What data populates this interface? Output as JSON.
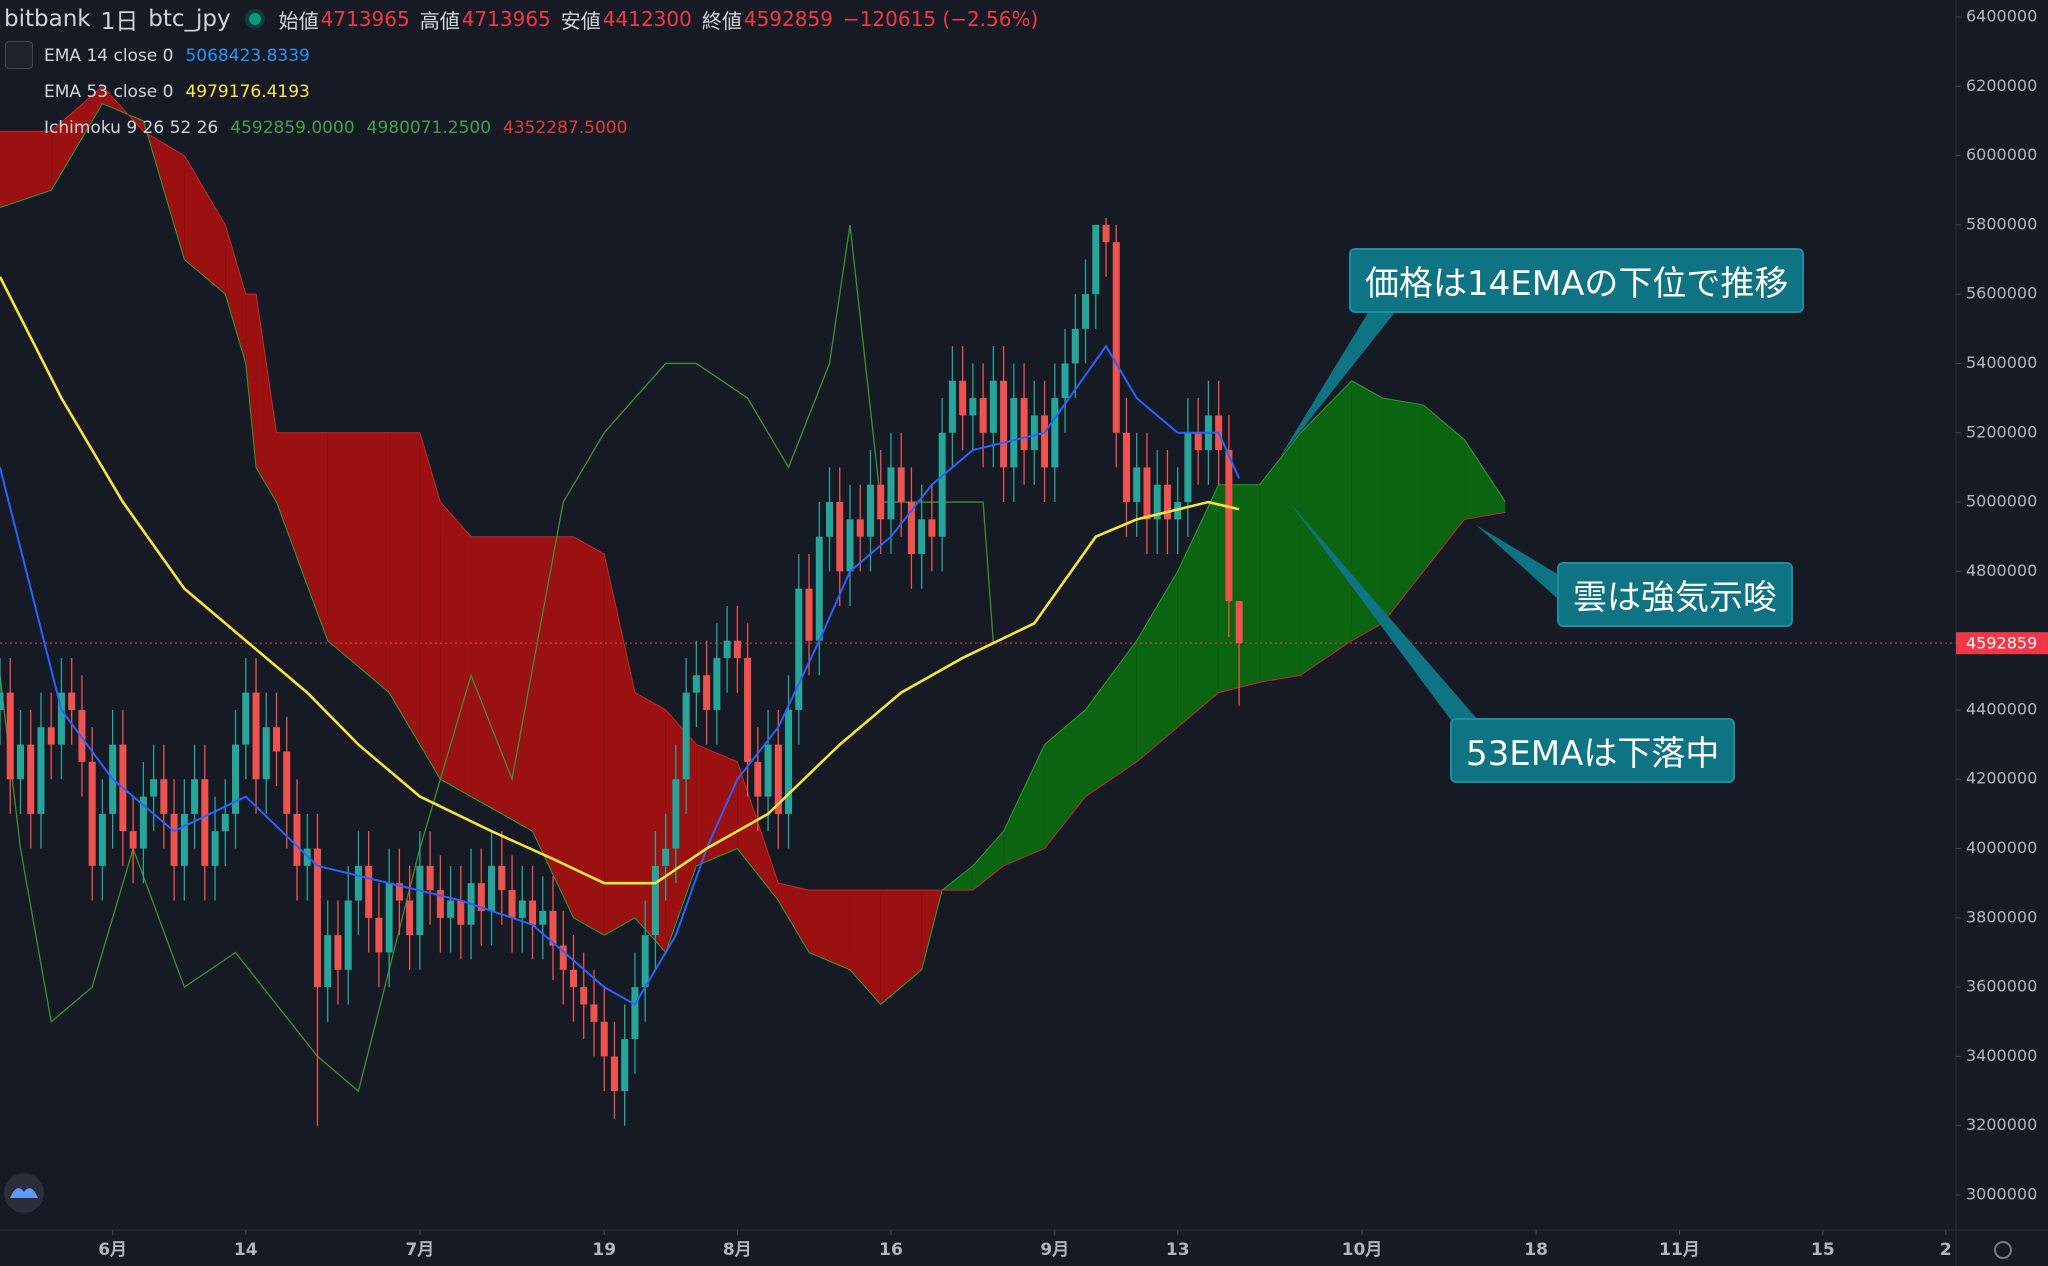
{
  "chart_data": {
    "type": "candlestick",
    "title": "bitbank",
    "interval": "1日",
    "symbol": "btc_jpy",
    "ohlc_labels": [
      "始値",
      "高値",
      "安値",
      "終値"
    ],
    "change_label": "−120615 (−2.56%)",
    "up_color": "#26a69a",
    "down_color": "#ef5350",
    "x": [
      "5/21",
      "5/22",
      "5/23",
      "5/24",
      "5/25",
      "5/26",
      "5/27",
      "5/28",
      "5/29",
      "5/30",
      "5/31",
      "6/1",
      "6/2",
      "6/3",
      "6/4",
      "6/5",
      "6/6",
      "6/7",
      "6/8",
      "6/9",
      "6/10",
      "6/11",
      "6/12",
      "6/13",
      "6/14",
      "6/15",
      "6/16",
      "6/17",
      "6/18",
      "6/19",
      "6/20",
      "6/21",
      "6/22",
      "6/23",
      "6/24",
      "6/25",
      "6/26",
      "6/27",
      "6/28",
      "6/29",
      "6/30",
      "7/1",
      "7/2",
      "7/3",
      "7/4",
      "7/5",
      "7/6",
      "7/7",
      "7/8",
      "7/9",
      "7/10",
      "7/11",
      "7/12",
      "7/13",
      "7/14",
      "7/15",
      "7/16",
      "7/17",
      "7/18",
      "7/19",
      "7/20",
      "7/21",
      "7/22",
      "7/23",
      "7/24",
      "7/25",
      "7/26",
      "7/27",
      "7/28",
      "7/29",
      "7/30",
      "7/31",
      "8/1",
      "8/2",
      "8/3",
      "8/4",
      "8/5",
      "8/6",
      "8/7",
      "8/8",
      "8/9",
      "8/10",
      "8/11",
      "8/12",
      "8/13",
      "8/14",
      "8/15",
      "8/16",
      "8/17",
      "8/18",
      "8/19",
      "8/20",
      "8/21",
      "8/22",
      "8/23",
      "8/24",
      "8/25",
      "8/26",
      "8/27",
      "8/28",
      "8/29",
      "8/30",
      "8/31",
      "9/1",
      "9/2",
      "9/3",
      "9/4",
      "9/5",
      "9/6",
      "9/7",
      "9/8",
      "9/9",
      "9/10",
      "9/11",
      "9/12",
      "9/13",
      "9/14",
      "9/15",
      "9/16",
      "9/17",
      "9/18",
      "9/19"
    ],
    "open": [
      4400000,
      4450000,
      4200000,
      4300000,
      4100000,
      4350000,
      4300000,
      4450000,
      4400000,
      4250000,
      3950000,
      4100000,
      4300000,
      4050000,
      4000000,
      4150000,
      4200000,
      4100000,
      3950000,
      4100000,
      4200000,
      3950000,
      4050000,
      4100000,
      4300000,
      4450000,
      4200000,
      4350000,
      4280000,
      4100000,
      3950000,
      4000000,
      3600000,
      3750000,
      3650000,
      3850000,
      3950000,
      3800000,
      3700000,
      3900000,
      3850000,
      3750000,
      3950000,
      3880000,
      3800000,
      3850000,
      3780000,
      3900000,
      3820000,
      3950000,
      3880000,
      3800000,
      3850000,
      3780000,
      3820000,
      3720000,
      3650000,
      3600000,
      3550000,
      3500000,
      3400000,
      3300000,
      3450000,
      3600000,
      3750000,
      3950000,
      4000000,
      4200000,
      4450000,
      4500000,
      4400000,
      4550000,
      4600000,
      4550000,
      4250000,
      4150000,
      4300000,
      4100000,
      4400000,
      4750000,
      4600000,
      4900000,
      5000000,
      4800000,
      4950000,
      4900000,
      5050000,
      4950000,
      5100000,
      5000000,
      4850000,
      4950000,
      4900000,
      5200000,
      5350000,
      5250000,
      5300000,
      5200000,
      5350000,
      5100000,
      5300000,
      5150000,
      5250000,
      5100000,
      5300000,
      5400000,
      5500000,
      5600000,
      5800000,
      5750000,
      5200000,
      5000000,
      5100000,
      4950000,
      5050000,
      4950000,
      5000000,
      5200000,
      5150000,
      5250000,
      5150000,
      4713965
    ],
    "high": [
      4550000,
      4550000,
      4400000,
      4400000,
      4450000,
      4450000,
      4550000,
      4550000,
      4500000,
      4350000,
      4200000,
      4400000,
      4400000,
      4150000,
      4250000,
      4300000,
      4300000,
      4200000,
      4200000,
      4300000,
      4300000,
      4150000,
      4200000,
      4400000,
      4550000,
      4550000,
      4450000,
      4450000,
      4380000,
      4200000,
      4100000,
      4100000,
      3850000,
      3850000,
      3950000,
      4050000,
      4050000,
      3900000,
      4000000,
      4000000,
      3950000,
      4050000,
      4050000,
      3980000,
      3950000,
      3950000,
      4000000,
      4000000,
      4050000,
      4050000,
      3980000,
      3950000,
      3950000,
      3920000,
      3920000,
      3820000,
      3750000,
      3700000,
      3650000,
      3600000,
      3500000,
      3550000,
      3700000,
      3850000,
      4050000,
      4100000,
      4300000,
      4550000,
      4600000,
      4600000,
      4650000,
      4700000,
      4700000,
      4650000,
      4350000,
      4400000,
      4400000,
      4500000,
      4850000,
      4850000,
      5000000,
      5100000,
      5100000,
      5050000,
      5050000,
      5150000,
      5150000,
      5200000,
      5200000,
      5100000,
      5050000,
      5050000,
      5300000,
      5450000,
      5450000,
      5400000,
      5400000,
      5450000,
      5450000,
      5400000,
      5400000,
      5350000,
      5350000,
      5400000,
      5500000,
      5600000,
      5700000,
      5800000,
      5820000,
      5800000,
      5300000,
      5200000,
      5200000,
      5150000,
      5150000,
      5100000,
      5300000,
      5300000,
      5350000,
      5350000,
      5250000,
      4713965
    ],
    "low": [
      4300000,
      4100000,
      4100000,
      4000000,
      4000000,
      4200000,
      4200000,
      4300000,
      4150000,
      3850000,
      3850000,
      4000000,
      3950000,
      3900000,
      3900000,
      4050000,
      4000000,
      3850000,
      3850000,
      4000000,
      3850000,
      3850000,
      3950000,
      4000000,
      4200000,
      4100000,
      4100000,
      4180000,
      4000000,
      3850000,
      3850000,
      3200000,
      3500000,
      3550000,
      3550000,
      3750000,
      3700000,
      3600000,
      3600000,
      3750000,
      3650000,
      3650000,
      3780000,
      3700000,
      3700000,
      3680000,
      3680000,
      3720000,
      3720000,
      3780000,
      3700000,
      3700000,
      3680000,
      3680000,
      3620000,
      3550000,
      3500000,
      3450000,
      3400000,
      3300000,
      3220000,
      3200000,
      3350000,
      3500000,
      3650000,
      3850000,
      3900000,
      4100000,
      4350000,
      4300000,
      4300000,
      4450000,
      4450000,
      4150000,
      4050000,
      4050000,
      4000000,
      4000000,
      4300000,
      4500000,
      4500000,
      4800000,
      4700000,
      4700000,
      4800000,
      4800000,
      4850000,
      4850000,
      4900000,
      4750000,
      4750000,
      4800000,
      4800000,
      5100000,
      5150000,
      5150000,
      5100000,
      5100000,
      5000000,
      5000000,
      5050000,
      5050000,
      5000000,
      5000000,
      5200000,
      5300000,
      5400000,
      5500000,
      5650000,
      5100000,
      4900000,
      4900000,
      4850000,
      4850000,
      4850000,
      4850000,
      4900000,
      5050000,
      5050000,
      5050000,
      4610000,
      4412300
    ],
    "close": [
      4450000,
      4200000,
      4300000,
      4100000,
      4350000,
      4300000,
      4450000,
      4400000,
      4250000,
      3950000,
      4100000,
      4300000,
      4050000,
      4000000,
      4150000,
      4200000,
      4100000,
      3950000,
      4100000,
      4200000,
      3950000,
      4050000,
      4100000,
      4300000,
      4450000,
      4200000,
      4350000,
      4280000,
      4100000,
      3950000,
      4000000,
      3600000,
      3750000,
      3650000,
      3850000,
      3950000,
      3800000,
      3700000,
      3900000,
      3850000,
      3750000,
      3950000,
      3880000,
      3800000,
      3850000,
      3780000,
      3900000,
      3820000,
      3950000,
      3880000,
      3800000,
      3850000,
      3780000,
      3820000,
      3720000,
      3650000,
      3600000,
      3550000,
      3500000,
      3400000,
      3300000,
      3450000,
      3600000,
      3750000,
      3950000,
      4000000,
      4200000,
      4450000,
      4500000,
      4400000,
      4550000,
      4600000,
      4550000,
      4250000,
      4150000,
      4300000,
      4100000,
      4400000,
      4750000,
      4600000,
      4900000,
      5000000,
      4800000,
      4950000,
      4900000,
      5050000,
      4950000,
      5100000,
      5000000,
      4850000,
      4950000,
      4900000,
      5200000,
      5350000,
      5250000,
      5300000,
      5200000,
      5350000,
      5100000,
      5300000,
      5150000,
      5250000,
      5100000,
      5300000,
      5400000,
      5500000,
      5600000,
      5800000,
      5750000,
      5200000,
      5000000,
      5100000,
      4950000,
      5050000,
      4950000,
      5000000,
      5200000,
      5150000,
      5250000,
      5150000,
      4713965,
      4592859
    ],
    "series": [
      {
        "name": "EMA 14 close 0",
        "color": "#2962ff",
        "x": [
          "5/21",
          "5/27",
          "6/1",
          "6/7",
          "6/14",
          "6/21",
          "6/28",
          "7/5",
          "7/12",
          "7/19",
          "7/22",
          "7/26",
          "7/29",
          "8/1",
          "8/5",
          "8/9",
          "8/12",
          "8/16",
          "8/20",
          "8/24",
          "8/31",
          "9/6",
          "9/9",
          "9/13",
          "9/17",
          "9/19"
        ],
        "values": [
          5100000,
          4400000,
          4200000,
          4050000,
          4150000,
          3950000,
          3900000,
          3850000,
          3780000,
          3600000,
          3550000,
          3750000,
          4000000,
          4200000,
          4350000,
          4600000,
          4800000,
          4900000,
          5050000,
          5150000,
          5200000,
          5450000,
          5300000,
          5200000,
          5200000,
          5068423.8339
        ],
        "legend_color": "#2196f3"
      },
      {
        "name": "EMA 53 close 0",
        "color": "#f5e63b",
        "x": [
          "5/21",
          "5/27",
          "6/2",
          "6/8",
          "6/14",
          "6/20",
          "6/25",
          "7/1",
          "7/8",
          "7/14",
          "7/19",
          "7/24",
          "7/29",
          "8/4",
          "8/11",
          "8/17",
          "8/23",
          "8/30",
          "9/5",
          "9/9",
          "9/16",
          "9/19"
        ],
        "values": [
          5650000,
          5300000,
          5000000,
          4750000,
          4600000,
          4450000,
          4300000,
          4150000,
          4050000,
          3970000,
          3900000,
          3900000,
          4000000,
          4100000,
          4300000,
          4450000,
          4550000,
          4650000,
          4900000,
          4950000,
          5000000,
          4979176.4193
        ],
        "legend_color": "#ffeb3b"
      }
    ],
    "ichimoku": {
      "name": "Ichimoku 9 26 52 26",
      "value_labels": [
        "4592859.0000",
        "4980071.2500",
        "4352287.5000"
      ],
      "label_colors": [
        "#43a047",
        "#43a047",
        "#e53935"
      ],
      "lagging": {
        "color": "#3f8f2f",
        "x": [
          "5/21",
          "5/23",
          "5/26",
          "5/30",
          "6/3",
          "6/8",
          "6/13",
          "6/21",
          "6/25",
          "7/1",
          "7/6",
          "7/10",
          "7/15",
          "7/19",
          "7/25",
          "7/28",
          "8/2",
          "8/6",
          "8/10",
          "8/12",
          "8/15",
          "8/20",
          "8/25",
          "8/26"
        ],
        "values": [
          4500000,
          4000000,
          3500000,
          3600000,
          4000000,
          3600000,
          3700000,
          3400000,
          3300000,
          4000000,
          4500000,
          4200000,
          5000000,
          5200000,
          5400000,
          5400000,
          5300000,
          5100000,
          5400000,
          5800000,
          5000000,
          5000000,
          5000000,
          4592859
        ]
      },
      "cloud": {
        "bull_color": "#0b6410",
        "bear_color": "#9b1010",
        "span_a_color": "#2e9e2e",
        "span_b_color": "#c62828",
        "x": [
          "5/21",
          "5/26",
          "5/31",
          "6/4",
          "6/8",
          "6/12",
          "6/14",
          "6/15",
          "6/17",
          "6/22",
          "6/28",
          "7/1",
          "7/3",
          "7/6",
          "7/12",
          "7/16",
          "7/19",
          "7/22",
          "7/25",
          "7/28",
          "8/1",
          "8/5",
          "8/8",
          "8/12",
          "8/15",
          "8/19",
          "8/21",
          "8/24",
          "8/27",
          "8/31",
          "9/4",
          "9/9",
          "9/13",
          "9/17",
          "9/21",
          "9/25",
          "9/30",
          "10/3",
          "10/7",
          "10/11",
          "10/15"
        ],
        "span_a": [
          5850000,
          5900000,
          6150000,
          6100000,
          5700000,
          5600000,
          5400000,
          5100000,
          5000000,
          4600000,
          4450000,
          4300000,
          4200000,
          4150000,
          4050000,
          3800000,
          3750000,
          3800000,
          3700000,
          3950000,
          4000000,
          3850000,
          3700000,
          3650000,
          3550000,
          3650000,
          3880000,
          3950000,
          4050000,
          4300000,
          4400000,
          4600000,
          4800000,
          5050000,
          5050000,
          5200000,
          5350000,
          5300000,
          5280000,
          5180000,
          5000000
        ],
        "span_b": [
          6070000,
          6070000,
          6200000,
          6070000,
          6000000,
          5800000,
          5600000,
          5600000,
          5200000,
          5200000,
          5200000,
          5200000,
          5000000,
          4900000,
          4900000,
          4900000,
          4850000,
          4450000,
          4400000,
          4300000,
          4250000,
          3900000,
          3880000,
          3880000,
          3880000,
          3880000,
          3880000,
          3880000,
          3950000,
          4000000,
          4150000,
          4250000,
          4350000,
          4450000,
          4480000,
          4500000,
          4600000,
          4650000,
          4800000,
          4950000,
          4970000
        ]
      }
    },
    "ylim": [
      2899000,
      6449000
    ],
    "yticks": [
      3000000,
      3200000,
      3400000,
      3600000,
      3800000,
      4000000,
      4200000,
      4400000,
      4600000,
      4800000,
      5000000,
      5200000,
      5400000,
      5600000,
      5800000,
      6000000,
      6200000,
      6400000
    ],
    "xlim": [
      "5/21",
      "11/28"
    ],
    "xticks": [
      {
        "value": "6/1",
        "label": "6月"
      },
      {
        "value": "6/14",
        "label": "14"
      },
      {
        "value": "7/1",
        "label": "7月"
      },
      {
        "value": "7/19",
        "label": "19"
      },
      {
        "value": "8/1",
        "label": "8月"
      },
      {
        "value": "8/16",
        "label": "16"
      },
      {
        "value": "9/1",
        "label": "9月"
      },
      {
        "value": "9/13",
        "label": "13"
      },
      {
        "value": "10/1",
        "label": "10月"
      },
      {
        "value": "10/18",
        "label": "18"
      },
      {
        "value": "11/1",
        "label": "11月"
      },
      {
        "value": "11/15",
        "label": "15"
      },
      {
        "value": "11/27",
        "label": "2"
      }
    ],
    "annotations": [
      {
        "text": "価格は14EMAの下位で推移"
      },
      {
        "text": "雲は強気示唆"
      },
      {
        "text": "53EMAは下落中"
      }
    ]
  }
}
